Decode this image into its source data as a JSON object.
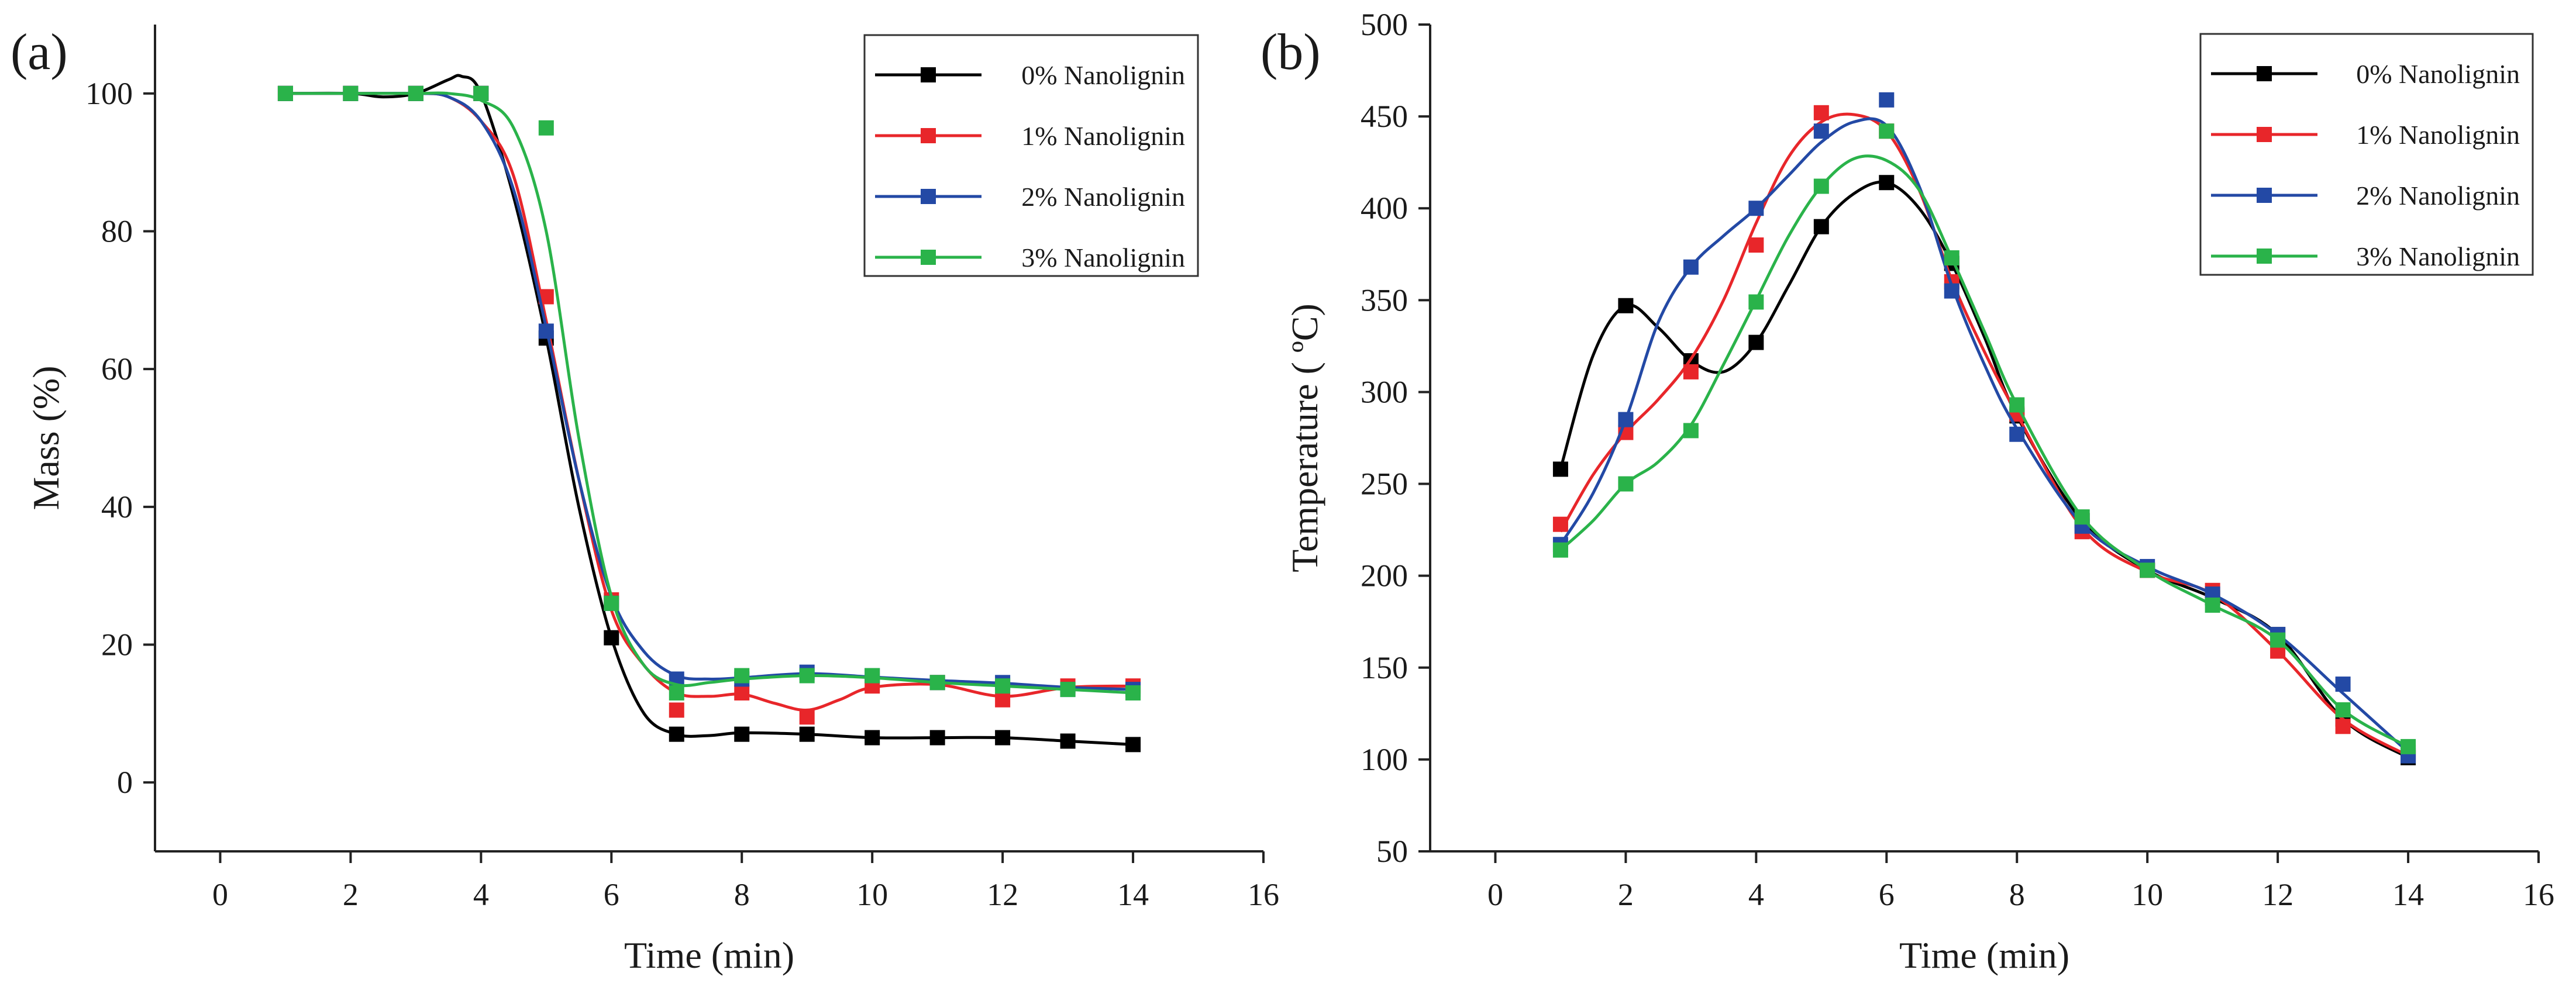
{
  "chart_data": [
    {
      "type": "line",
      "panel_label": "(a)",
      "xlabel": "Time (min)",
      "ylabel": "Mass (%)",
      "xlim": [
        -1,
        16
      ],
      "ylim": [
        -10,
        110
      ],
      "xticks": [
        0,
        2,
        4,
        6,
        8,
        10,
        12,
        14,
        16
      ],
      "yticks": [
        0,
        20,
        40,
        60,
        80,
        100
      ],
      "legend_position": "top-right",
      "grid": false,
      "series": [
        {
          "name": "0% Nanolignin",
          "color": "#000000",
          "x": [
            1,
            2,
            3,
            4,
            5,
            6,
            7,
            8,
            9,
            10,
            11,
            12,
            13,
            14
          ],
          "y": [
            100,
            100,
            100,
            100,
            64.5,
            21,
            7,
            7,
            7,
            6.5,
            6.5,
            6.5,
            6,
            5.5
          ],
          "curve_x": [
            1,
            2,
            2.5,
            3,
            3.5,
            3.7,
            4,
            4.5,
            5,
            5.5,
            6,
            6.5,
            7,
            7.5,
            8,
            9,
            10,
            11,
            12,
            13,
            14
          ],
          "curve_y": [
            100,
            100,
            99.5,
            100,
            102,
            102.5,
            100,
            85,
            64.5,
            40,
            21,
            10,
            7,
            6.8,
            7.2,
            7,
            6.5,
            6.5,
            6.5,
            6,
            5.5
          ]
        },
        {
          "name": "1% Nanolignin",
          "color": "#e8262a",
          "x": [
            1,
            2,
            3,
            4,
            5,
            6,
            7,
            8,
            9,
            10,
            11,
            12,
            13,
            14
          ],
          "y": [
            100,
            100,
            100,
            100,
            70.5,
            26.5,
            10.5,
            13,
            9.5,
            14,
            14.5,
            12,
            14,
            14
          ],
          "curve_x": [
            1,
            2,
            3,
            3.5,
            4,
            4.5,
            5,
            5.5,
            6,
            6.5,
            7,
            7.5,
            8,
            8.5,
            9,
            9.5,
            10,
            11,
            12,
            13,
            14
          ],
          "curve_y": [
            100,
            100,
            100,
            99.5,
            96,
            88,
            67,
            44,
            25,
            17,
            13,
            12.5,
            12.8,
            11.5,
            10.5,
            12,
            13.8,
            14.2,
            12.5,
            13.8,
            14
          ]
        },
        {
          "name": "2% Nanolignin",
          "color": "#2349a5",
          "x": [
            1,
            2,
            3,
            4,
            5,
            6,
            7,
            8,
            9,
            10,
            11,
            12,
            13,
            14
          ],
          "y": [
            100,
            100,
            100,
            100,
            65.5,
            26,
            15,
            15,
            16,
            15.5,
            14.5,
            14.5,
            13.5,
            13.5
          ],
          "curve_x": [
            1,
            2,
            3,
            3.5,
            4,
            4.5,
            5,
            5.5,
            6,
            6.5,
            7,
            7.5,
            8,
            9,
            10,
            11,
            12,
            13,
            14
          ],
          "curve_y": [
            100,
            100,
            100,
            99.5,
            96,
            86,
            66,
            44,
            27,
            19,
            15.5,
            15,
            15.2,
            15.8,
            15.3,
            14.8,
            14.4,
            13.8,
            13.5
          ]
        },
        {
          "name": "3% Nanolignin",
          "color": "#2ab34a",
          "x": [
            1,
            2,
            3,
            4,
            5,
            6,
            7,
            8,
            9,
            10,
            11,
            12,
            13,
            14
          ],
          "y": [
            100,
            100,
            100,
            100,
            95,
            26,
            13,
            15.5,
            15.5,
            15.5,
            14.5,
            14,
            13.5,
            13
          ],
          "curve_x": [
            1,
            2,
            3,
            3.5,
            4,
            4.5,
            5,
            5.5,
            6,
            6.5,
            7,
            7.5,
            8,
            9,
            10,
            11,
            12,
            13,
            14
          ],
          "curve_y": [
            100,
            100,
            100,
            100,
            99,
            95,
            80,
            50,
            27,
            17,
            14.2,
            14.5,
            15,
            15.5,
            15.2,
            14.5,
            14,
            13.5,
            13
          ]
        }
      ]
    },
    {
      "type": "line",
      "panel_label": "(b)",
      "xlabel": "Time (min)",
      "ylabel": "Temperature ( ºC)",
      "xlim": [
        -1,
        16
      ],
      "ylim": [
        50,
        500
      ],
      "xticks": [
        0,
        2,
        4,
        6,
        8,
        10,
        12,
        14,
        16
      ],
      "yticks": [
        50,
        100,
        150,
        200,
        250,
        300,
        350,
        400,
        450,
        500
      ],
      "legend_position": "top-right",
      "grid": false,
      "series": [
        {
          "name": "0% Nanolignin",
          "color": "#000000",
          "x": [
            1,
            2,
            3,
            4,
            5,
            6,
            7,
            8,
            9,
            10,
            11,
            12,
            13,
            14
          ],
          "y": [
            258,
            347,
            317,
            327,
            390,
            414,
            370,
            287,
            230,
            203,
            188,
            168,
            122,
            101
          ],
          "curve_x": [
            1,
            1.5,
            2,
            2.5,
            3,
            3.5,
            4,
            4.5,
            5,
            5.5,
            6,
            6.5,
            7,
            7.5,
            8,
            9,
            10,
            11,
            12,
            13,
            14
          ],
          "curve_y": [
            258,
            320,
            347,
            335,
            317,
            311,
            327,
            358,
            390,
            408,
            414,
            400,
            370,
            330,
            287,
            230,
            203,
            188,
            168,
            122,
            101
          ]
        },
        {
          "name": "1% Nanolignin",
          "color": "#e8262a",
          "x": [
            1,
            2,
            3,
            4,
            5,
            6,
            7,
            8,
            9,
            10,
            11,
            12,
            13,
            14
          ],
          "y": [
            228,
            278,
            311,
            380,
            452,
            442,
            360,
            288,
            224,
            203,
            192,
            159,
            118,
            104
          ],
          "curve_x": [
            1,
            1.5,
            2,
            2.5,
            3,
            3.5,
            4,
            4.5,
            5,
            5.5,
            6,
            6.5,
            7,
            7.5,
            8,
            9,
            10,
            11,
            12,
            13,
            14
          ],
          "curve_y": [
            224,
            255,
            278,
            296,
            318,
            350,
            392,
            428,
            447,
            451,
            442,
            410,
            361,
            322,
            288,
            226,
            202,
            190,
            159,
            122,
            102
          ]
        },
        {
          "name": "2% Nanolignin",
          "color": "#2349a5",
          "x": [
            1,
            2,
            3,
            4,
            5,
            6,
            7,
            8,
            9,
            10,
            11,
            12,
            13,
            14
          ],
          "y": [
            217,
            285,
            368,
            400,
            442,
            459,
            355,
            277,
            227,
            205,
            190,
            168,
            141,
            102
          ],
          "curve_x": [
            1,
            1.5,
            2,
            2.5,
            3,
            3.5,
            4,
            4.5,
            5,
            5.5,
            6,
            6.5,
            7,
            7.5,
            8,
            9,
            10,
            11,
            12,
            13,
            14
          ],
          "curve_y": [
            217,
            245,
            285,
            338,
            368,
            385,
            400,
            418,
            436,
            447,
            445,
            412,
            358,
            315,
            280,
            228,
            205,
            190,
            168,
            136,
            104
          ]
        },
        {
          "name": "3% Nanolignin",
          "color": "#2ab34a",
          "x": [
            1,
            2,
            3,
            4,
            5,
            6,
            7,
            8,
            9,
            10,
            11,
            12,
            13,
            14
          ],
          "y": [
            214,
            250,
            279,
            349,
            412,
            442,
            373,
            293,
            232,
            203,
            184,
            165,
            127,
            107
          ],
          "curve_x": [
            1,
            1.5,
            2,
            2.5,
            3,
            3.5,
            4,
            4.5,
            5,
            5.5,
            6,
            6.5,
            7,
            7.5,
            8,
            9,
            10,
            11,
            12,
            13,
            14
          ],
          "curve_y": [
            214,
            230,
            250,
            262,
            282,
            315,
            350,
            385,
            412,
            427,
            426,
            410,
            373,
            333,
            293,
            232,
            203,
            184,
            165,
            127,
            107
          ]
        }
      ]
    }
  ]
}
